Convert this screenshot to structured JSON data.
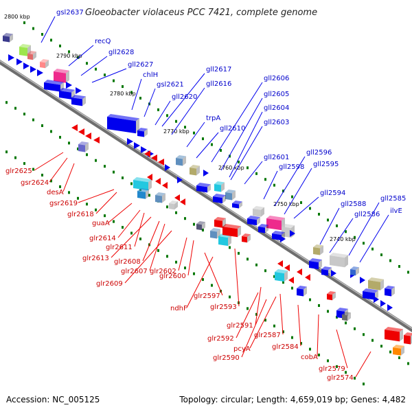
{
  "title": "Gloeobacter violaceus PCC 7421, complete genome",
  "scale_labels": [
    "2800 kbp",
    "2790 kbp",
    "2780 kbp",
    "2770 kbp",
    "2760 kbp",
    "2750 kbp",
    "2740 kbp"
  ],
  "plus_strand_labels": [
    "gsl2637",
    "recQ",
    "gll2628",
    "gll2627",
    "chlH",
    "gsl2621",
    "gll2620",
    "gll2617",
    "gll2616",
    "trpA",
    "gll2610",
    "gll2606",
    "gll2605",
    "gll2604",
    "gll2603",
    "gll2601",
    "gll2598",
    "gll2596",
    "gll2595",
    "gll2594",
    "gll2588",
    "gll2586",
    "gll2585",
    "ilvE"
  ],
  "minus_strand_labels": [
    "glr2625",
    "gsr2624",
    "desA",
    "gsr2619",
    "glr2618",
    "guaA",
    "glr2614",
    "glr2611",
    "glr2613",
    "glr2608",
    "glr2607",
    "glr2609",
    "glr2602",
    "glr2600",
    "glr2597",
    "ndhF",
    "glr2593",
    "glr2591",
    "glr2592",
    "glr2587",
    "pcyA",
    "glr2590",
    "glr2584",
    "cobA",
    "glr2579",
    "glr2574"
  ],
  "colors": {
    "plus_gene": "#0000ee",
    "minus_gene": "#ee0000",
    "backbone": "#8c8c8c",
    "gc_marks": "#007700",
    "rna_like": "#c8c8c8",
    "magenta": "#ee2a8c",
    "cyan": "#22c8e0",
    "olive": "#b3aa6a",
    "steel": "#5f8fbe",
    "lime": "#9ce64c",
    "orange": "#ff8800"
  },
  "footer": {
    "accession": "Accession: NC_005125",
    "stats": "Topology: circular; Length: 4,659,019 bp; Genes: 4,482"
  }
}
